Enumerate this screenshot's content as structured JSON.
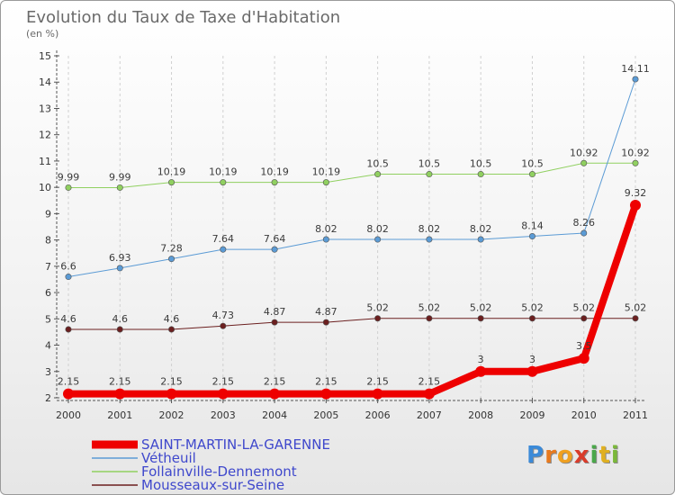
{
  "chart_data": {
    "type": "line",
    "title": "Evolution du Taux de Taxe d'Habitation",
    "subtitle": "(en %)",
    "x": [
      "2000",
      "2001",
      "2002",
      "2003",
      "2004",
      "2005",
      "2006",
      "2007",
      "2008",
      "2009",
      "2010",
      "2011"
    ],
    "ylim": [
      2,
      15
    ],
    "yticks": [
      2,
      3,
      4,
      5,
      6,
      7,
      8,
      9,
      10,
      11,
      12,
      13,
      14,
      15
    ],
    "grid": "dashed-vertical",
    "legend_placement": "bottom-left",
    "series": [
      {
        "name": "Mousseaux-sur-Seine",
        "color": "#6b1f1f",
        "width": 1,
        "values": [
          4.6,
          4.6,
          4.6,
          4.73,
          4.87,
          4.87,
          5.02,
          5.02,
          5.02,
          5.02,
          5.02,
          5.02
        ],
        "labels": [
          "4.6",
          "4.6",
          "4.6",
          "4.73",
          "4.87",
          "4.87",
          "5.02",
          "5.02",
          "5.02",
          "5.02",
          "5.02",
          "5.02"
        ]
      },
      {
        "name": "Follainville-Dennemont",
        "color": "#90d060",
        "width": 1,
        "values": [
          9.99,
          9.99,
          10.19,
          10.19,
          10.19,
          10.19,
          10.5,
          10.5,
          10.5,
          10.5,
          10.92,
          10.92
        ],
        "labels": [
          "9.99",
          "9.99",
          "10.19",
          "10.19",
          "10.19",
          "10.19",
          "10.5",
          "10.5",
          "10.5",
          "10.5",
          "10.92",
          "10.92"
        ]
      },
      {
        "name": "Vétheuil",
        "color": "#5b9bd5",
        "width": 1,
        "values": [
          6.6,
          6.93,
          7.28,
          7.64,
          7.64,
          8.02,
          8.02,
          8.02,
          8.02,
          8.14,
          8.26,
          14.11
        ],
        "labels": [
          "6.6",
          "6.93",
          "7.28",
          "7.64",
          "7.64",
          "8.02",
          "8.02",
          "8.02",
          "8.02",
          "8.14",
          "8.26",
          "14.11"
        ]
      },
      {
        "name": "SAINT-MARTIN-LA-GARENNE",
        "color": "#ee0000",
        "width": 8,
        "values": [
          2.15,
          2.15,
          2.15,
          2.15,
          2.15,
          2.15,
          2.15,
          2.15,
          3,
          3,
          3.5,
          9.32
        ],
        "labels": [
          "2.15",
          "2.15",
          "2.15",
          "2.15",
          "2.15",
          "2.15",
          "2.15",
          "2.15",
          "3",
          "3",
          "3.5",
          "9.32"
        ]
      }
    ],
    "legend_order": [
      3,
      2,
      1,
      0
    ]
  },
  "logo": {
    "letters": [
      "P",
      "r",
      "o",
      "x",
      "i",
      "t",
      "i"
    ],
    "colors": [
      "#3b8ad8",
      "#e87a1e",
      "#f0a020",
      "#d93c2b",
      "#4aa84a",
      "#e0b020",
      "#7bb83a"
    ]
  }
}
